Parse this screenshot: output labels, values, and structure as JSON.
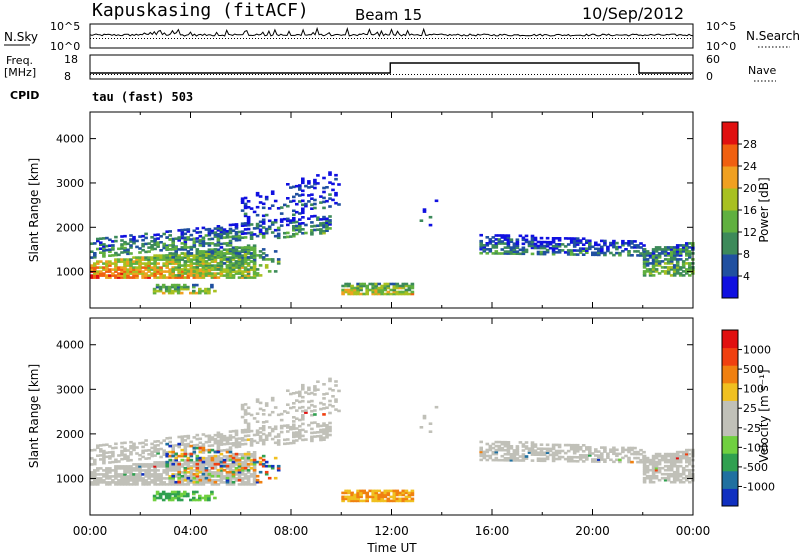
{
  "header": {
    "station": "Kapuskasing (fitACF)",
    "beam": "Beam 15",
    "date": "10/Sep/2012"
  },
  "top_panels": {
    "nsky_label": "N.Sky",
    "nsky_ticks": [
      "10^5",
      "10^0"
    ],
    "nsearch_label": "N.Search",
    "nsearch_ticks": [
      "10^5",
      "10^0"
    ],
    "freq_label": "Freq.",
    "freq_unit": "[MHz]",
    "freq_ticks": [
      "18",
      "8"
    ],
    "nave_label": "Nave",
    "nave_ticks": [
      "60",
      "0"
    ],
    "cpid_label": "CPID",
    "cpid_text": "tau (fast) 503"
  },
  "chart_data": [
    {
      "type": "heatmap",
      "name": "power",
      "ylabel": "Slant Range [km]",
      "xlabel": "Time UT",
      "x_ticks": [
        "00:00",
        "04:00",
        "08:00",
        "12:00",
        "16:00",
        "20:00",
        "00:00"
      ],
      "xlim_hours": [
        0,
        24
      ],
      "y_ticks": [
        "1000",
        "2000",
        "3000",
        "4000"
      ],
      "ylim_km": [
        180,
        4600
      ],
      "colorbar_label": "Power [dB]",
      "colorbar_ticks": [
        "4",
        "8",
        "12",
        "16",
        "20",
        "24",
        "28"
      ],
      "colorbar_range": [
        0,
        30
      ],
      "colors": [
        "#1010e0",
        "#2050a0",
        "#3d8a5a",
        "#60b040",
        "#a8c020",
        "#f0a020",
        "#f06010",
        "#e01010"
      ]
    },
    {
      "type": "heatmap",
      "name": "velocity",
      "ylabel": "Slant Range [km]",
      "xlabel": "Time UT",
      "x_ticks": [
        "00:00",
        "04:00",
        "08:00",
        "12:00",
        "16:00",
        "20:00",
        "00:00"
      ],
      "xlim_hours": [
        0,
        24
      ],
      "y_ticks": [
        "1000",
        "2000",
        "3000",
        "4000"
      ],
      "ylim_km": [
        180,
        4600
      ],
      "colorbar_label": "Velocity [m s⁻¹]",
      "colorbar_ticks": [
        "1000",
        "500",
        "100",
        "25",
        "-25",
        "-100",
        "-500",
        "-1000"
      ],
      "colors": [
        "#1030c0",
        "#2070a0",
        "#30a050",
        "#70d040",
        "#c0c0b8",
        "#c0c0b8",
        "#f0c020",
        "#f08010",
        "#f04010",
        "#e01010"
      ],
      "ground_scatter_color": "#c0c0b8"
    }
  ]
}
